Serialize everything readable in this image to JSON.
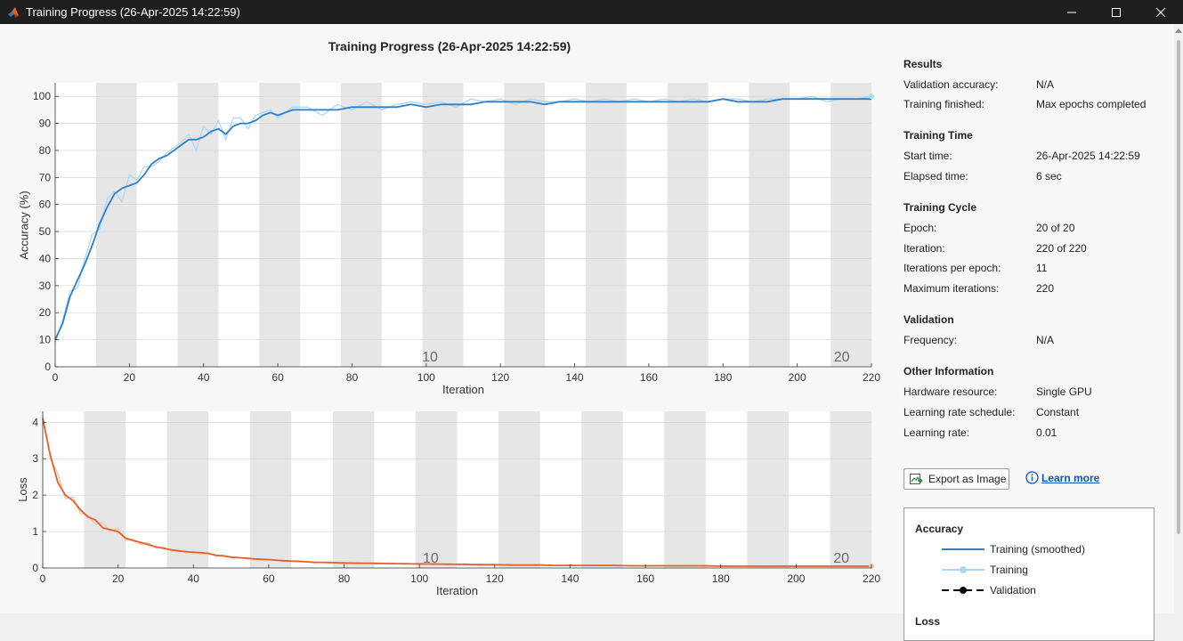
{
  "window": {
    "title": "Training Progress (26-Apr-2025 14:22:59)",
    "minimize_icon": "minimize-icon",
    "maximize_icon": "maximize-icon",
    "close_icon": "close-icon"
  },
  "plot_title": "Training Progress (26-Apr-2025 14:22:59)",
  "results": {
    "heading": "Results",
    "validation_accuracy_label": "Validation accuracy:",
    "validation_accuracy": "N/A",
    "training_finished_label": "Training finished:",
    "training_finished": "Max epochs completed"
  },
  "training_time": {
    "heading": "Training Time",
    "start_label": "Start time:",
    "start": "26-Apr-2025 14:22:59",
    "elapsed_label": "Elapsed time:",
    "elapsed": "6 sec"
  },
  "training_cycle": {
    "heading": "Training Cycle",
    "epoch_label": "Epoch:",
    "epoch": "20 of 20",
    "iteration_label": "Iteration:",
    "iteration": "220 of 220",
    "ipe_label": "Iterations per epoch:",
    "ipe": "11",
    "max_iter_label": "Maximum iterations:",
    "max_iter": "220"
  },
  "validation": {
    "heading": "Validation",
    "frequency_label": "Frequency:",
    "frequency": "N/A"
  },
  "other": {
    "heading": "Other Information",
    "hw_label": "Hardware resource:",
    "hw": "Single GPU",
    "lrs_label": "Learning rate schedule:",
    "lrs": "Constant",
    "lr_label": "Learning rate:",
    "lr": "0.01"
  },
  "buttons": {
    "export": "Export as Image",
    "learn_more": "Learn more"
  },
  "legend": {
    "accuracy_heading": "Accuracy",
    "training_smoothed": "Training (smoothed)",
    "training": "Training",
    "validation": "Validation",
    "loss_heading": "Loss"
  },
  "colors": {
    "acc_smoothed": "#2f7fc8",
    "acc_raw": "#a9d8f7",
    "loss_smoothed": "#e1622c",
    "loss_raw": "#f6c2a8",
    "epoch_shade": "#e6e6e6"
  },
  "chart_data": [
    {
      "type": "line",
      "xlabel": "Iteration",
      "ylabel": "Accuracy (%)",
      "xlim": [
        0,
        220
      ],
      "ylim": [
        0,
        105
      ],
      "xticks": [
        0,
        20,
        40,
        60,
        80,
        100,
        120,
        140,
        160,
        180,
        200,
        220
      ],
      "yticks": [
        0,
        10,
        20,
        30,
        40,
        50,
        60,
        70,
        80,
        90,
        100
      ],
      "epoch_labels": [
        {
          "x": 101,
          "text": "10"
        },
        {
          "x": 212,
          "text": "20"
        }
      ],
      "epoch_length": 11,
      "x": [
        0,
        2,
        4,
        6,
        8,
        10,
        12,
        14,
        16,
        18,
        20,
        22,
        24,
        26,
        28,
        30,
        32,
        34,
        36,
        38,
        40,
        42,
        44,
        46,
        48,
        50,
        52,
        54,
        56,
        58,
        60,
        64,
        68,
        72,
        76,
        80,
        84,
        88,
        92,
        96,
        100,
        104,
        108,
        112,
        116,
        120,
        124,
        128,
        132,
        136,
        140,
        144,
        148,
        152,
        156,
        160,
        164,
        168,
        172,
        176,
        180,
        184,
        188,
        192,
        196,
        200,
        204,
        208,
        212,
        216,
        220
      ],
      "series": [
        {
          "values": [
            10,
            16,
            26,
            32,
            38,
            45,
            53,
            59,
            64,
            66,
            67,
            68,
            71,
            75,
            77,
            78,
            80,
            82,
            84,
            84,
            85,
            87,
            88,
            86,
            89,
            90,
            90,
            91,
            93,
            94,
            93,
            95,
            95,
            95,
            95,
            96,
            96,
            96,
            96,
            97,
            96,
            97,
            97,
            97,
            98,
            98,
            98,
            98,
            97,
            98,
            98,
            98,
            98,
            98,
            98,
            98,
            98,
            98,
            98,
            98,
            99,
            98,
            98,
            98,
            99,
            99,
            99,
            99,
            99,
            99,
            99
          ]
        },
        {
          "values": [
            9,
            17,
            28,
            29,
            40,
            49,
            51,
            62,
            65,
            61,
            71,
            69,
            74,
            74,
            76,
            79,
            81,
            83,
            86,
            80,
            89,
            86,
            91,
            84,
            92,
            92,
            88,
            93,
            94,
            95,
            92,
            96,
            96,
            93,
            97,
            95,
            98,
            95,
            97,
            98,
            97,
            98,
            96,
            99,
            98,
            99,
            97,
            99,
            98,
            98,
            99,
            98,
            99,
            98,
            99,
            98,
            99,
            98,
            99,
            98,
            99,
            99,
            98,
            99,
            99,
            99,
            100,
            98,
            99,
            99,
            100
          ]
        }
      ]
    },
    {
      "type": "line",
      "xlabel": "Iteration",
      "ylabel": "Loss",
      "xlim": [
        0,
        220
      ],
      "ylim": [
        0,
        4.3
      ],
      "xticks": [
        0,
        20,
        40,
        60,
        80,
        100,
        120,
        140,
        160,
        180,
        200,
        220
      ],
      "yticks": [
        0,
        1,
        2,
        3,
        4
      ],
      "epoch_labels": [
        {
          "x": 103,
          "text": "10"
        },
        {
          "x": 212,
          "text": "20"
        }
      ],
      "epoch_length": 11,
      "x": [
        0,
        2,
        4,
        6,
        8,
        10,
        12,
        14,
        16,
        18,
        20,
        22,
        24,
        26,
        28,
        30,
        32,
        34,
        36,
        38,
        40,
        42,
        44,
        46,
        48,
        50,
        52,
        54,
        56,
        58,
        60,
        64,
        68,
        72,
        76,
        80,
        84,
        88,
        92,
        96,
        100,
        104,
        108,
        112,
        116,
        120,
        124,
        128,
        132,
        136,
        140,
        144,
        148,
        152,
        156,
        160,
        164,
        168,
        172,
        176,
        180,
        184,
        188,
        192,
        196,
        200,
        204,
        208,
        212,
        216,
        220
      ],
      "series": [
        {
          "values": [
            4.1,
            3.1,
            2.35,
            2.0,
            1.85,
            1.6,
            1.4,
            1.32,
            1.1,
            1.05,
            1.0,
            0.82,
            0.75,
            0.7,
            0.64,
            0.58,
            0.54,
            0.5,
            0.47,
            0.45,
            0.43,
            0.42,
            0.4,
            0.35,
            0.33,
            0.3,
            0.28,
            0.27,
            0.25,
            0.24,
            0.23,
            0.2,
            0.18,
            0.16,
            0.15,
            0.14,
            0.13,
            0.13,
            0.12,
            0.12,
            0.11,
            0.11,
            0.1,
            0.1,
            0.09,
            0.09,
            0.08,
            0.08,
            0.08,
            0.07,
            0.07,
            0.07,
            0.07,
            0.07,
            0.06,
            0.06,
            0.06,
            0.06,
            0.06,
            0.06,
            0.05,
            0.05,
            0.05,
            0.05,
            0.05,
            0.05,
            0.05,
            0.05,
            0.05,
            0.05,
            0.05
          ]
        },
        {
          "values": [
            4.2,
            3.0,
            2.6,
            1.9,
            1.95,
            1.5,
            1.45,
            1.2,
            1.25,
            1.0,
            1.1,
            0.75,
            0.8,
            0.65,
            0.7,
            0.55,
            0.58,
            0.47,
            0.5,
            0.42,
            0.46,
            0.38,
            0.42,
            0.32,
            0.36,
            0.28,
            0.3,
            0.25,
            0.27,
            0.22,
            0.25,
            0.18,
            0.2,
            0.14,
            0.17,
            0.12,
            0.15,
            0.11,
            0.14,
            0.1,
            0.13,
            0.09,
            0.12,
            0.08,
            0.11,
            0.08,
            0.1,
            0.07,
            0.09,
            0.06,
            0.08,
            0.06,
            0.08,
            0.06,
            0.07,
            0.05,
            0.07,
            0.05,
            0.07,
            0.04,
            0.06,
            0.05,
            0.06,
            0.04,
            0.06,
            0.04,
            0.05,
            0.04,
            0.06,
            0.04,
            0.05
          ]
        }
      ]
    }
  ]
}
